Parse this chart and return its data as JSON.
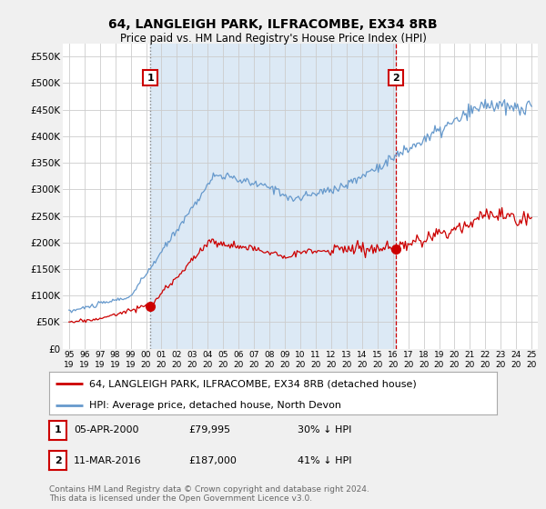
{
  "title": "64, LANGLEIGH PARK, ILFRACOMBE, EX34 8RB",
  "subtitle": "Price paid vs. HM Land Registry's House Price Index (HPI)",
  "ylim": [
    0,
    575000
  ],
  "yticks": [
    0,
    50000,
    100000,
    150000,
    200000,
    250000,
    300000,
    350000,
    400000,
    450000,
    500000,
    550000
  ],
  "ytick_labels": [
    "£0",
    "£50K",
    "£100K",
    "£150K",
    "£200K",
    "£250K",
    "£300K",
    "£350K",
    "£400K",
    "£450K",
    "£500K",
    "£550K"
  ],
  "sale1_date": 2000.27,
  "sale1_price": 79995,
  "sale1_label": "1",
  "sale2_date": 2016.19,
  "sale2_price": 187000,
  "sale2_label": "2",
  "hpi_color": "#6699cc",
  "hpi_fill_color": "#dce9f5",
  "sale_color": "#cc0000",
  "annotation_table": [
    [
      "1",
      "05-APR-2000",
      "£79,995",
      "30% ↓ HPI"
    ],
    [
      "2",
      "11-MAR-2016",
      "£187,000",
      "41% ↓ HPI"
    ]
  ],
  "legend_entries": [
    "64, LANGLEIGH PARK, ILFRACOMBE, EX34 8RB (detached house)",
    "HPI: Average price, detached house, North Devon"
  ],
  "footer": "Contains HM Land Registry data © Crown copyright and database right 2024.\nThis data is licensed under the Open Government Licence v3.0.",
  "bg_color": "#f0f0f0",
  "plot_bg_color": "#ffffff"
}
